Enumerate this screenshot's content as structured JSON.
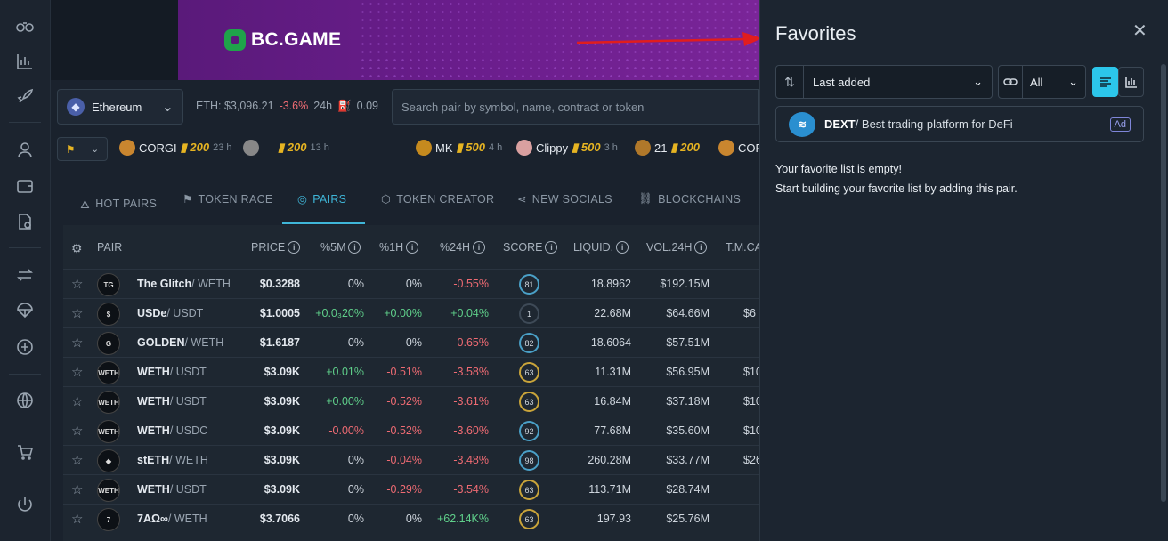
{
  "banner": {
    "brand": "BC.GAME"
  },
  "topbar": {
    "chain": "Ethereum",
    "eth_label": "ETH: $3,096.21",
    "eth_change": "-3.6%",
    "eth_period": "24h",
    "gas": "0.09",
    "search_placeholder": "Search pair by symbol, name, contract or token"
  },
  "hot": [
    {
      "name": "CORGI",
      "points": "200",
      "time": "23 h"
    },
    {
      "name": "—",
      "points": "200",
      "time": "13 h"
    },
    {
      "name": "MK",
      "points": "500",
      "time": "4 h"
    },
    {
      "name": "Clippy",
      "points": "500",
      "time": "3 h"
    },
    {
      "name": "21",
      "points": "200",
      "time": ""
    },
    {
      "name": "COR",
      "points": "",
      "time": ""
    }
  ],
  "tabs": [
    "HOT PAIRS",
    "TOKEN RACE",
    "PAIRS",
    "TOKEN CREATOR",
    "NEW SOCIALS",
    "BLOCKCHAINS"
  ],
  "columns": {
    "pair": "PAIR",
    "price": "PRICE",
    "m5": "%5M",
    "h1": "%1H",
    "h24": "%24H",
    "score": "SCORE",
    "liq": "LIQUID.",
    "vol": "VOL.24H",
    "tmc": "T.M.CA"
  },
  "rows": [
    {
      "base": "The Glitch",
      "quote": "/ WETH",
      "price": "$0.3288",
      "m5": "0%",
      "h1": "0%",
      "h24": "-0.55%",
      "score": "81",
      "liq": "18.8962",
      "vol": "$192.15M",
      "tmc": "",
      "av": "TG"
    },
    {
      "base": "USDe",
      "quote": "/ USDT",
      "price": "$1.0005",
      "m5": "+0.0₃20%",
      "h1": "+0.00%",
      "h24": "+0.04%",
      "score": "1",
      "liq": "22.68M",
      "vol": "$64.66M",
      "tmc": "$6",
      "av": "$"
    },
    {
      "base": "GOLDEN",
      "quote": "/ WETH",
      "price": "$1.6187",
      "m5": "0%",
      "h1": "0%",
      "h24": "-0.65%",
      "score": "82",
      "liq": "18.6064",
      "vol": "$57.51M",
      "tmc": "",
      "av": "G"
    },
    {
      "base": "WETH",
      "quote": "/ USDT",
      "price": "$3.09K",
      "m5": "+0.01%",
      "h1": "-0.51%",
      "h24": "-3.58%",
      "score": "63",
      "liq": "11.31M",
      "vol": "$56.95M",
      "tmc": "$10",
      "av": "WETH"
    },
    {
      "base": "WETH",
      "quote": "/ USDT",
      "price": "$3.09K",
      "m5": "+0.00%",
      "h1": "-0.52%",
      "h24": "-3.61%",
      "score": "63",
      "liq": "16.84M",
      "vol": "$37.18M",
      "tmc": "$10",
      "av": "WETH"
    },
    {
      "base": "WETH",
      "quote": "/ USDC",
      "price": "$3.09K",
      "m5": "-0.00%",
      "h1": "-0.52%",
      "h24": "-3.60%",
      "score": "92",
      "liq": "77.68M",
      "vol": "$35.60M",
      "tmc": "$10",
      "av": "WETH"
    },
    {
      "base": "stETH",
      "quote": "/ WETH",
      "price": "$3.09K",
      "m5": "0%",
      "h1": "-0.04%",
      "h24": "-3.48%",
      "score": "98",
      "liq": "260.28M",
      "vol": "$33.77M",
      "tmc": "$26",
      "av": "◆"
    },
    {
      "base": "WETH",
      "quote": "/ USDT",
      "price": "$3.09K",
      "m5": "0%",
      "h1": "-0.29%",
      "h24": "-3.54%",
      "score": "63",
      "liq": "113.71M",
      "vol": "$28.74M",
      "tmc": "",
      "av": "WETH"
    },
    {
      "base": "7AΩ∞",
      "quote": "/ WETH",
      "price": "$3.7066",
      "m5": "0%",
      "h1": "0%",
      "h24": "+62.14K%",
      "score": "63",
      "liq": "197.93",
      "vol": "$25.76M",
      "tmc": "",
      "av": "7"
    }
  ],
  "favorites": {
    "title": "Favorites",
    "sort_value": "Last added",
    "filter_value": "All",
    "ad_brand": "DEXT",
    "ad_text": "/ Best trading platform for DeFi",
    "ad_badge": "Ad",
    "empty_line1": "Your favorite list is empty!",
    "empty_line2": "Start building your favorite list by adding this pair."
  },
  "colors": {
    "accent": "#3fb6d8",
    "negative": "#ef6b73",
    "positive": "#5fcf8a",
    "points": "#e6b422"
  }
}
